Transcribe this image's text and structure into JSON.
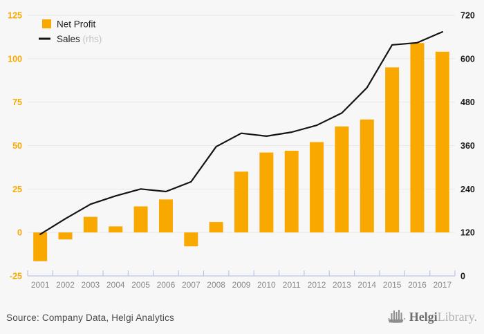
{
  "chart_data": {
    "type": "bar",
    "title": "",
    "categories": [
      "2001",
      "2002",
      "2003",
      "2004",
      "2005",
      "2006",
      "2007",
      "2008",
      "2009",
      "2010",
      "2011",
      "2012",
      "2013",
      "2014",
      "2015",
      "2016",
      "2017"
    ],
    "series": [
      {
        "name": "Net Profit",
        "type": "bar",
        "axis": "left",
        "color": "#F9A800",
        "values": [
          -16.5,
          -4,
          9,
          3.5,
          15,
          19,
          -8,
          6,
          35,
          46,
          47,
          52,
          61,
          65,
          95,
          109,
          104
        ]
      },
      {
        "name": "Sales",
        "type": "line",
        "axis": "right",
        "color": "#141414",
        "values": [
          115,
          158,
          198,
          221,
          240,
          233,
          260,
          357,
          394,
          386,
          397,
          416,
          450,
          520,
          638,
          644,
          674
        ]
      }
    ],
    "left_axis": {
      "min": -25,
      "max": 125,
      "ticks": [
        125,
        100,
        75,
        50,
        25,
        0,
        -25
      ],
      "color": "#F9A800"
    },
    "right_axis": {
      "min": 0,
      "max": 720,
      "ticks": [
        720,
        600,
        480,
        360,
        240,
        120,
        0
      ],
      "color": "#1A1A1A"
    },
    "x_axis": {
      "label_color": "#8A8A8A",
      "line_color": "#BDC5E1"
    },
    "legend": [
      {
        "label": "Net Profit",
        "suffix": "",
        "swatch": "square",
        "color": "#F9A800",
        "label_color": "#1F1F1F"
      },
      {
        "label": "Sales",
        "suffix": " (rhs)",
        "swatch": "line",
        "color": "#141414",
        "label_color": "#1F1F1F",
        "suffix_color": "#C4C4C4"
      }
    ],
    "grid": true,
    "gridline_color": "#E9E9E9",
    "background": "#F7F7F7",
    "legend_position": "top-left"
  },
  "footer": {
    "source_text": "Source: Company Data, Helgi Analytics",
    "logo": {
      "icon": "ship-bars-icon",
      "brand": "Helgi",
      "product": "Library."
    }
  }
}
